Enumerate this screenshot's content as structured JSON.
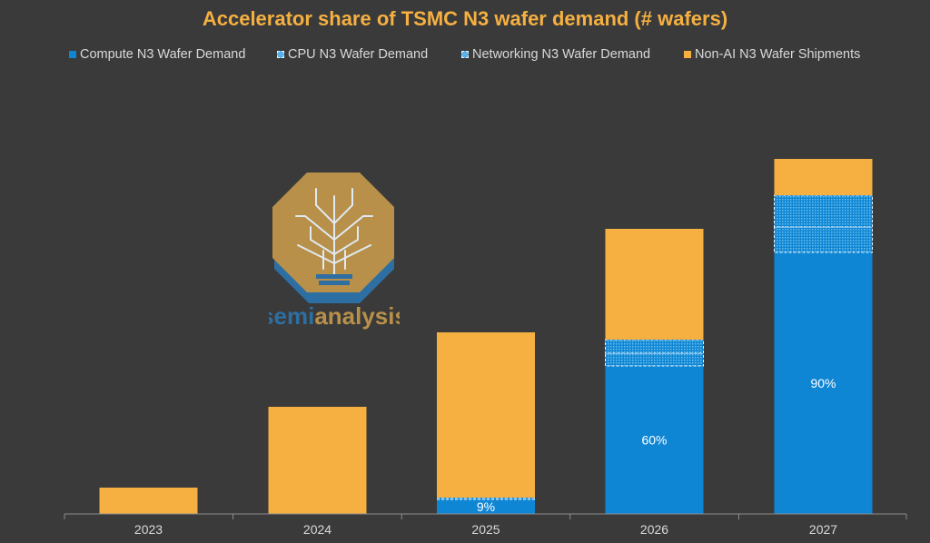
{
  "chart_data": {
    "type": "bar",
    "stacked": true,
    "title": "Accelerator share of TSMC N3 wafer demand (# wafers)",
    "categories": [
      "2023",
      "2024",
      "2025",
      "2026",
      "2027"
    ],
    "series": [
      {
        "name": "Compute N3 Wafer Demand",
        "color": "#0f86d4",
        "pattern": "solid",
        "values": [
          0,
          0,
          0.16,
          1.63,
          2.88
        ]
      },
      {
        "name": "CPU N3 Wafer Demand",
        "color": "#0f86d4",
        "pattern": "dotted",
        "values": [
          0,
          0,
          0.02,
          0.14,
          0.28
        ]
      },
      {
        "name": "Networking N3 Wafer Demand",
        "color": "#0f86d4",
        "pattern": "dotted",
        "values": [
          0,
          0,
          0,
          0.15,
          0.35
        ]
      },
      {
        "name": "Non-AI N3 Wafer Shipments",
        "color": "#f5b041",
        "pattern": "solid",
        "values": [
          0.29,
          1.18,
          1.82,
          1.22,
          0.4
        ]
      }
    ],
    "data_labels": [
      {
        "category": "2025",
        "text": "9%"
      },
      {
        "category": "2026",
        "text": "60%"
      },
      {
        "category": "2027",
        "text": "90%"
      }
    ],
    "legend_position": "top",
    "grid": false,
    "y_axis_visible": false
  },
  "watermark": {
    "brand_part1": "semi",
    "brand_part2": "analysis"
  },
  "colors": {
    "background": "#3a3a3a",
    "title": "#f5b041",
    "axis": "#8c8c8c",
    "text": "#d9d9d9"
  }
}
